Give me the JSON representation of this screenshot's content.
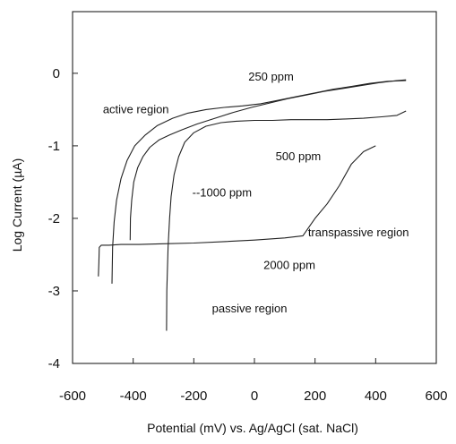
{
  "chart_data": {
    "type": "line",
    "xlabel": "Potential (mV) vs. Ag/AgCl (sat. NaCl)",
    "ylabel": "Log Current (µA)",
    "xlim": [
      -600,
      600
    ],
    "ylim": [
      -4,
      0.85
    ],
    "xticks": [
      -600,
      -400,
      -200,
      0,
      200,
      400,
      600
    ],
    "xtick_labels": [
      "-600",
      "-400",
      "-200",
      "0",
      "200",
      "400",
      "600"
    ],
    "yticks": [
      0,
      -1,
      -2,
      -3,
      -4
    ],
    "ytick_labels": [
      "0",
      "-1",
      "-2",
      "-3",
      "-4"
    ],
    "grid": false,
    "series": [
      {
        "name": "250 ppm",
        "x": [
          -470,
          -468,
          -463,
          -455,
          -440,
          -420,
          -395,
          -360,
          -320,
          -270,
          -220,
          -160,
          -100,
          -40,
          20,
          80,
          140,
          200,
          260,
          320,
          380,
          440,
          500
        ],
        "y": [
          -2.9,
          -2.4,
          -2.05,
          -1.75,
          -1.45,
          -1.2,
          -1.0,
          -0.85,
          -0.72,
          -0.62,
          -0.55,
          -0.5,
          -0.47,
          -0.45,
          -0.42,
          -0.37,
          -0.32,
          -0.27,
          -0.22,
          -0.18,
          -0.14,
          -0.11,
          -0.1
        ]
      },
      {
        "name": "500 ppm",
        "x": [
          -410,
          -409,
          -405,
          -398,
          -385,
          -368,
          -345,
          -315,
          -280,
          -240,
          -190,
          -130,
          -70,
          -10,
          50,
          110,
          170,
          230,
          290,
          350,
          410,
          470,
          500
        ],
        "y": [
          -2.3,
          -2.0,
          -1.75,
          -1.5,
          -1.3,
          -1.15,
          -1.02,
          -0.92,
          -0.85,
          -0.78,
          -0.7,
          -0.62,
          -0.54,
          -0.47,
          -0.41,
          -0.35,
          -0.3,
          -0.25,
          -0.21,
          -0.17,
          -0.13,
          -0.1,
          -0.09
        ]
      },
      {
        "name": "1000 ppm",
        "x": [
          -290,
          -289,
          -285,
          -280,
          -275,
          -265,
          -250,
          -230,
          -200,
          -160,
          -110,
          -60,
          0,
          60,
          120,
          180,
          240,
          300,
          360,
          420,
          470,
          500
        ],
        "y": [
          -3.55,
          -3.0,
          -2.4,
          -2.0,
          -1.7,
          -1.4,
          -1.15,
          -0.95,
          -0.82,
          -0.73,
          -0.68,
          -0.66,
          -0.65,
          -0.65,
          -0.64,
          -0.64,
          -0.64,
          -0.63,
          -0.62,
          -0.6,
          -0.58,
          -0.52
        ]
      },
      {
        "name": "2000 ppm",
        "x": [
          -515,
          -513,
          -512,
          -505,
          -480,
          -440,
          -380,
          -300,
          -200,
          -100,
          0,
          100,
          160,
          200,
          240,
          280,
          320,
          360,
          400
        ],
        "y": [
          -2.8,
          -2.6,
          -2.4,
          -2.37,
          -2.37,
          -2.36,
          -2.36,
          -2.35,
          -2.34,
          -2.32,
          -2.3,
          -2.27,
          -2.24,
          -2.0,
          -1.8,
          -1.55,
          -1.25,
          -1.08,
          -1.0
        ]
      }
    ],
    "annotations": [
      {
        "text": "250 ppm",
        "x": -20,
        "y": -0.05
      },
      {
        "text": "active region",
        "x": -500,
        "y": -0.5
      },
      {
        "text": "500 ppm",
        "x": 70,
        "y": -1.15
      },
      {
        "text": "--1000 ppm",
        "x": -205,
        "y": -1.65
      },
      {
        "text": "transpassive region",
        "x": 510,
        "y": -2.2
      },
      {
        "text": "2000 ppm",
        "x": 30,
        "y": -2.65
      },
      {
        "text": "passive region",
        "x": -140,
        "y": -3.25
      }
    ]
  }
}
